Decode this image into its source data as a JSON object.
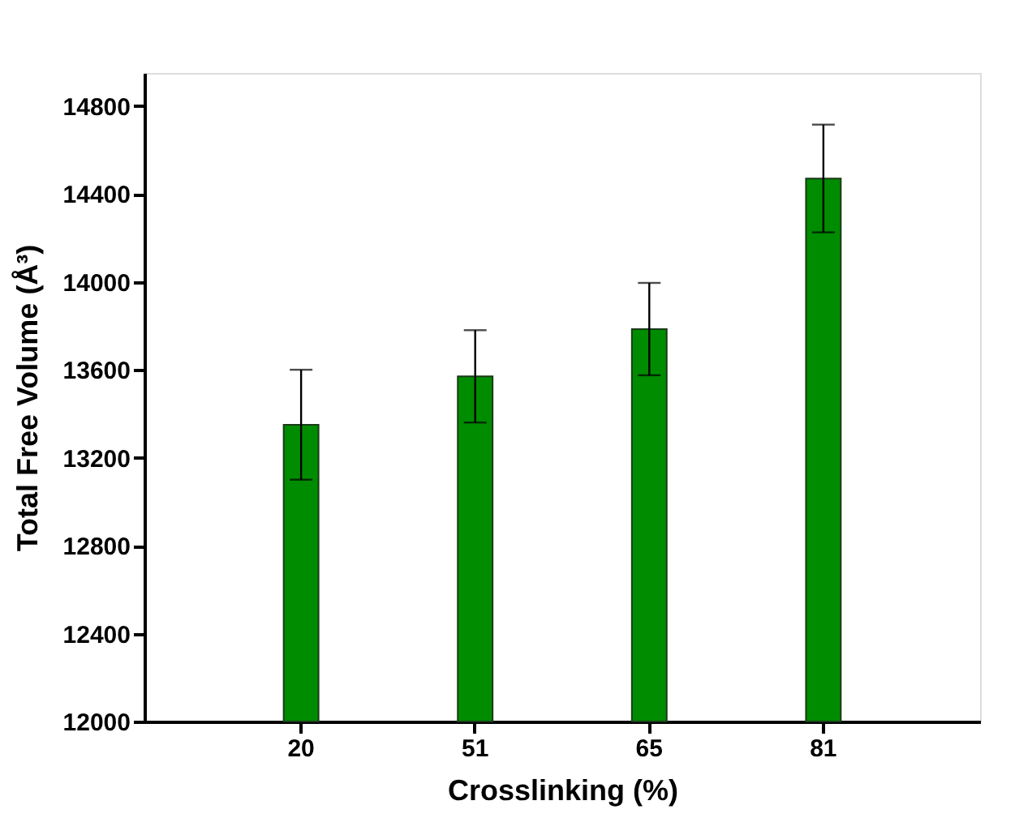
{
  "chart_data": {
    "type": "bar",
    "xlabel": "Crosslinking (%)",
    "ylabel": "Total Free Volume (Å³)",
    "categories": [
      "20",
      "51",
      "65",
      "81"
    ],
    "values": [
      13350,
      13570,
      13785,
      14470
    ],
    "errors": [
      250,
      210,
      210,
      245
    ],
    "color": "#008c00",
    "ylim": [
      12000,
      14950
    ],
    "yticks": [
      12000,
      12400,
      12800,
      13200,
      13600,
      14000,
      14400,
      14800
    ],
    "grid": false
  }
}
